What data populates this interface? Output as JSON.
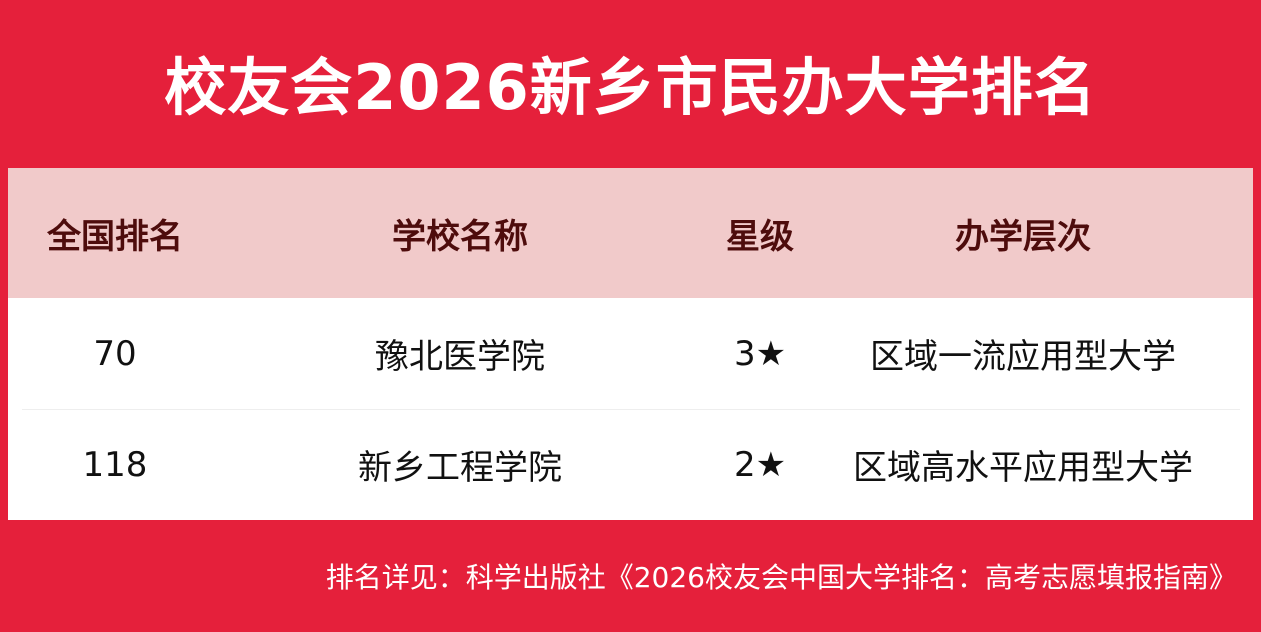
{
  "title": "校友会2026新乡市民办大学排名",
  "table": {
    "header": [
      "全国排名",
      "学校名称",
      "星级",
      "办学层次"
    ],
    "rows": [
      [
        70,
        "豫北医学院",
        "3★",
        "区域一流应用型大学"
      ],
      [
        118,
        "新乡工程学院",
        "2★",
        "区域高水平应用型大学"
      ]
    ]
  },
  "footer": "排名详见：科学出版社《2026校友会中国大学排名：高考志愿填报指南》"
}
